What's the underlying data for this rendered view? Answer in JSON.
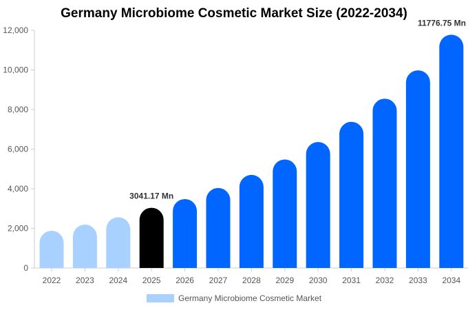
{
  "chart_data": {
    "type": "bar",
    "title": "Germany Microbiome Cosmetic Market Size (2022-2034)",
    "categories": [
      "2022",
      "2023",
      "2024",
      "2025",
      "2026",
      "2027",
      "2028",
      "2029",
      "2030",
      "2031",
      "2032",
      "2033",
      "2034"
    ],
    "series": [
      {
        "name": "Germany Microbiome Cosmetic Market",
        "values": [
          1880,
          2190,
          2560,
          3041.17,
          3480,
          4040,
          4700,
          5480,
          6360,
          7380,
          8550,
          9980,
          11776.75
        ]
      }
    ],
    "ylim": [
      0,
      12000
    ],
    "yticks": [
      "0",
      "2,000",
      "4,000",
      "6,000",
      "8,000",
      "10,000",
      "12,000"
    ],
    "ytick_values": [
      0,
      2000,
      4000,
      6000,
      8000,
      10000,
      12000
    ],
    "bar_colors": [
      "#a8d1ff",
      "#a8d1ff",
      "#a8d1ff",
      "#000000",
      "#0066ff",
      "#0066ff",
      "#0066ff",
      "#0066ff",
      "#0066ff",
      "#0066ff",
      "#0066ff",
      "#0066ff",
      "#0066ff"
    ],
    "annotations": [
      {
        "index": 3,
        "text": "3041.17 Mn"
      },
      {
        "index": 12,
        "text": "11776.75 Mn"
      }
    ],
    "legend": {
      "label": "Germany Microbiome Cosmetic Market",
      "color": "#a8d1ff",
      "position": "bottom"
    },
    "grid": false
  }
}
